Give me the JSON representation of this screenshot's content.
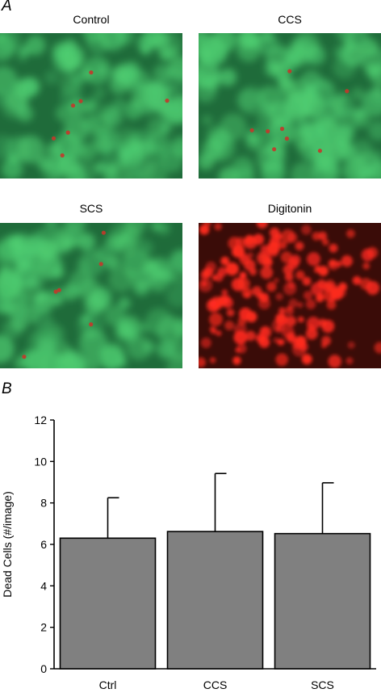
{
  "panel_a": {
    "letter": "A",
    "images": [
      {
        "title": "Control",
        "stain": "green"
      },
      {
        "title": "CCS",
        "stain": "green"
      },
      {
        "title": "SCS",
        "stain": "green"
      },
      {
        "title": "Digitonin",
        "stain": "red"
      }
    ],
    "colors": {
      "green_bg": "#1f6b3a",
      "green_hi": "#4fcf72",
      "red_bg": "#3a0c08",
      "red_hi": "#ff2a1f",
      "dead_dot": "#c4372a"
    }
  },
  "panel_b": {
    "letter": "B"
  },
  "chart_data": {
    "type": "bar",
    "categories": [
      "Ctrl",
      "CCS",
      "SCS"
    ],
    "values": [
      6.3,
      6.62,
      6.52
    ],
    "error_upper": [
      1.95,
      2.8,
      2.45
    ],
    "ylabel": "Dead Cells (#/image)",
    "xlabel": "",
    "ylim": [
      0,
      12
    ],
    "yticks": [
      "0",
      "2",
      "4",
      "6",
      "8",
      "10",
      "12"
    ],
    "bar_color": "#808080",
    "grid": false,
    "legend": "none"
  }
}
